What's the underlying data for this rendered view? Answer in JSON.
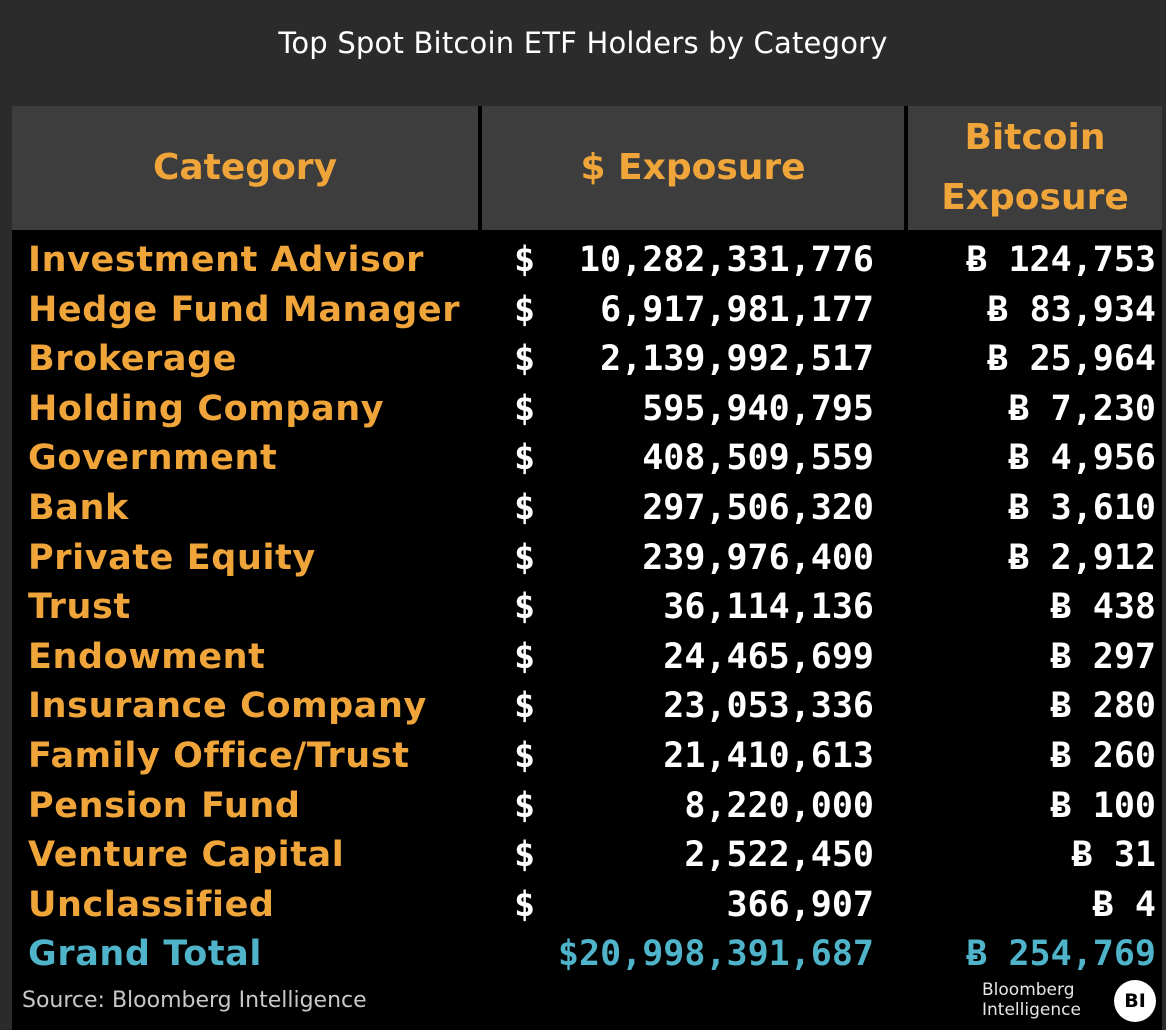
{
  "chart_data": {
    "type": "table",
    "title": "Top Spot Bitcoin ETF Holders by Category",
    "columns": [
      "Category",
      "$ Exposure",
      "Bitcoin Exposure"
    ],
    "column_header_lines": {
      "bitcoin_exposure": [
        "Bitcoin",
        "Exposure"
      ]
    },
    "currency_symbol": "$",
    "btc_symbol": "Ƀ",
    "rows": [
      {
        "category": "Investment Advisor",
        "usd": "10,282,331,776",
        "btc": "124,753"
      },
      {
        "category": "Hedge Fund Manager",
        "usd": "6,917,981,177",
        "btc": "83,934"
      },
      {
        "category": "Brokerage",
        "usd": "2,139,992,517",
        "btc": "25,964"
      },
      {
        "category": "Holding Company",
        "usd": "595,940,795",
        "btc": "7,230"
      },
      {
        "category": "Government",
        "usd": "408,509,559",
        "btc": "4,956"
      },
      {
        "category": "Bank",
        "usd": "297,506,320",
        "btc": "3,610"
      },
      {
        "category": "Private Equity",
        "usd": "239,976,400",
        "btc": "2,912"
      },
      {
        "category": "Trust",
        "usd": "36,114,136",
        "btc": "438"
      },
      {
        "category": "Endowment",
        "usd": "24,465,699",
        "btc": "297"
      },
      {
        "category": "Insurance Company",
        "usd": "23,053,336",
        "btc": "280"
      },
      {
        "category": "Family Office/Trust",
        "usd": "21,410,613",
        "btc": "260"
      },
      {
        "category": "Pension Fund",
        "usd": "8,220,000",
        "btc": "100"
      },
      {
        "category": "Venture Capital",
        "usd": "2,522,450",
        "btc": "31"
      },
      {
        "category": "Unclassified",
        "usd": "366,907",
        "btc": "4"
      }
    ],
    "total": {
      "category": "Grand Total",
      "usd": "$20,998,391,687",
      "btc": "Ƀ 254,769"
    },
    "source": "Source: Bloomberg Intelligence"
  },
  "branding": {
    "logo_line1": "Bloomberg",
    "logo_line2": "Intelligence",
    "logo_badge": "BI"
  },
  "colors": {
    "category_text": "#f0a53a",
    "value_text": "#ffffff",
    "total_text": "#4fb3c9",
    "header_bg": "#3d3d3d",
    "frame_bg": "#2b2b2b"
  }
}
